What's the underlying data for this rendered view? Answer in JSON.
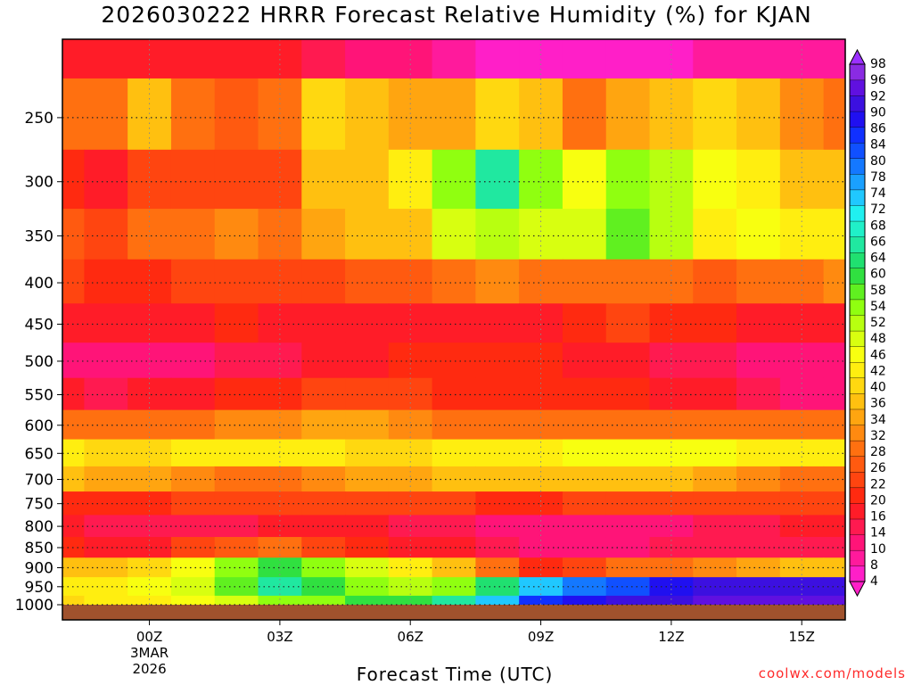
{
  "chart_data": {
    "type": "heatmap",
    "title": "2026030222 HRRR Forecast Relative Humidity (%) for KJAN",
    "xlabel": "Forecast Time (UTC)",
    "ylabel": "",
    "x_hours": [
      -2,
      -1,
      0,
      1,
      2,
      3,
      4,
      5,
      6,
      7,
      8,
      9,
      10,
      11,
      12,
      13,
      14,
      15,
      16
    ],
    "x_ticks": [
      {
        "hour": 0,
        "label": "00Z",
        "sub": [
          "3MAR",
          "2026"
        ]
      },
      {
        "hour": 3,
        "label": "03Z"
      },
      {
        "hour": 6,
        "label": "06Z"
      },
      {
        "hour": 9,
        "label": "09Z"
      },
      {
        "hour": 12,
        "label": "12Z"
      },
      {
        "hour": 15,
        "label": "15Z"
      }
    ],
    "y_levels": [
      200,
      250,
      300,
      350,
      400,
      450,
      500,
      550,
      600,
      650,
      700,
      750,
      800,
      850,
      900,
      950,
      1000
    ],
    "y_tick_labels": [
      "250",
      "300",
      "350",
      "400",
      "450",
      "500",
      "550",
      "600",
      "650",
      "700",
      "750",
      "800",
      "850",
      "900",
      "950",
      "1000"
    ],
    "ylim": [
      1000,
      200
    ],
    "rh_values": [
      [
        18,
        18,
        16,
        16,
        18,
        16,
        14,
        12,
        10,
        8,
        6,
        4,
        6,
        6,
        6,
        8,
        8,
        8,
        8
      ],
      [
        30,
        28,
        38,
        30,
        26,
        30,
        40,
        36,
        34,
        34,
        40,
        38,
        30,
        34,
        36,
        40,
        38,
        32,
        30
      ],
      [
        20,
        18,
        24,
        24,
        22,
        24,
        36,
        38,
        44,
        54,
        66,
        54,
        46,
        54,
        52,
        46,
        44,
        38,
        36
      ],
      [
        26,
        24,
        28,
        30,
        32,
        30,
        34,
        36,
        38,
        48,
        52,
        48,
        50,
        58,
        52,
        42,
        46,
        44,
        42
      ],
      [
        22,
        20,
        20,
        22,
        24,
        22,
        24,
        26,
        26,
        30,
        32,
        30,
        28,
        30,
        28,
        26,
        28,
        30,
        32
      ],
      [
        18,
        16,
        18,
        18,
        20,
        18,
        16,
        18,
        16,
        16,
        18,
        18,
        20,
        22,
        20,
        20,
        18,
        18,
        16
      ],
      [
        12,
        10,
        12,
        12,
        14,
        14,
        18,
        18,
        20,
        20,
        20,
        20,
        18,
        16,
        14,
        14,
        12,
        10,
        10
      ],
      [
        16,
        14,
        16,
        18,
        20,
        20,
        22,
        22,
        22,
        20,
        20,
        20,
        20,
        20,
        18,
        16,
        14,
        12,
        12
      ],
      [
        28,
        28,
        30,
        30,
        32,
        32,
        34,
        34,
        32,
        30,
        30,
        30,
        30,
        30,
        28,
        28,
        28,
        30,
        30
      ],
      [
        42,
        40,
        40,
        42,
        44,
        44,
        42,
        40,
        40,
        42,
        44,
        44,
        46,
        46,
        46,
        46,
        44,
        44,
        42
      ],
      [
        36,
        34,
        34,
        32,
        30,
        30,
        32,
        34,
        34,
        36,
        38,
        38,
        38,
        38,
        36,
        34,
        32,
        30,
        30
      ],
      [
        20,
        20,
        20,
        22,
        22,
        22,
        22,
        22,
        22,
        22,
        20,
        20,
        22,
        22,
        22,
        22,
        22,
        22,
        22
      ],
      [
        16,
        14,
        14,
        14,
        14,
        16,
        16,
        16,
        14,
        14,
        12,
        10,
        10,
        12,
        12,
        14,
        14,
        16,
        16
      ],
      [
        20,
        18,
        18,
        22,
        26,
        28,
        24,
        20,
        18,
        16,
        14,
        12,
        12,
        12,
        14,
        14,
        14,
        14,
        14
      ],
      [
        36,
        38,
        40,
        46,
        56,
        62,
        56,
        48,
        42,
        36,
        30,
        20,
        24,
        28,
        30,
        32,
        34,
        36,
        38
      ],
      [
        42,
        44,
        46,
        50,
        58,
        66,
        62,
        56,
        52,
        56,
        64,
        74,
        80,
        84,
        90,
        92,
        92,
        94,
        94
      ],
      [
        40,
        42,
        44,
        46,
        50,
        54,
        56,
        60,
        62,
        66,
        76,
        86,
        90,
        92,
        94,
        96,
        96,
        96,
        96
      ]
    ],
    "colorbar": {
      "levels": [
        4,
        8,
        10,
        14,
        16,
        20,
        22,
        26,
        28,
        32,
        34,
        36,
        40,
        42,
        46,
        48,
        52,
        54,
        58,
        60,
        64,
        66,
        68,
        72,
        74,
        78,
        80,
        84,
        86,
        90,
        92,
        96,
        98
      ],
      "labels": [
        "98",
        "96",
        "92",
        "90",
        "86",
        "84",
        "80",
        "78",
        "74",
        "72",
        "68",
        "66",
        "64",
        "60",
        "58",
        "54",
        "52",
        "48",
        "46",
        "42",
        "40",
        "36",
        "34",
        "32",
        "28",
        "26",
        "22",
        "20",
        "16",
        "14",
        "10",
        "8",
        "4"
      ],
      "colors": [
        "#ff1fc8",
        "#ff1a9c",
        "#ff1478",
        "#ff1a50",
        "#ff1c28",
        "#ff2a10",
        "#ff4510",
        "#ff5a10",
        "#ff7010",
        "#ff8a10",
        "#ffa510",
        "#ffc010",
        "#ffd810",
        "#ffee10",
        "#f8ff10",
        "#d8ff10",
        "#b8ff10",
        "#90ff10",
        "#60f020",
        "#30e040",
        "#20e070",
        "#20e8a0",
        "#20f0c8",
        "#20f0f0",
        "#20c8ff",
        "#1aa0ff",
        "#1478ff",
        "#1050ff",
        "#1030ff",
        "#2010f0",
        "#3c10e0",
        "#6010e0",
        "#8a2be2"
      ]
    },
    "ground_color": "#a0522d",
    "grid": true
  },
  "credit": "coolwx.com/models"
}
